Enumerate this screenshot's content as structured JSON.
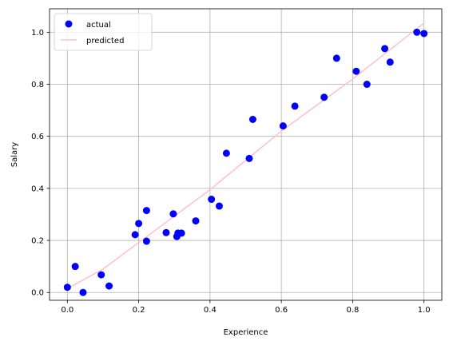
{
  "chart_data": {
    "type": "scatter",
    "title": "",
    "xlabel": "Experience",
    "ylabel": "Salary",
    "xlim": [
      -0.05,
      1.05
    ],
    "ylim": [
      -0.03,
      1.09
    ],
    "xticks": [
      "0.0",
      "0.2",
      "0.4",
      "0.6",
      "0.8",
      "1.0"
    ],
    "yticks": [
      "0.0",
      "0.2",
      "0.4",
      "0.6",
      "0.8",
      "1.0"
    ],
    "grid": true,
    "legend": {
      "placement": "top-left",
      "entries": [
        "actual",
        "predicted"
      ]
    },
    "series": [
      {
        "name": "actual",
        "kind": "scatter",
        "color": "#0000ff",
        "points": [
          [
            0.0,
            0.02
          ],
          [
            0.022,
            0.1
          ],
          [
            0.044,
            0.0
          ],
          [
            0.095,
            0.068
          ],
          [
            0.117,
            0.025
          ],
          [
            0.19,
            0.222
          ],
          [
            0.2,
            0.265
          ],
          [
            0.222,
            0.315
          ],
          [
            0.222,
            0.197
          ],
          [
            0.277,
            0.23
          ],
          [
            0.297,
            0.302
          ],
          [
            0.307,
            0.215
          ],
          [
            0.31,
            0.228
          ],
          [
            0.32,
            0.228
          ],
          [
            0.36,
            0.275
          ],
          [
            0.404,
            0.358
          ],
          [
            0.426,
            0.332
          ],
          [
            0.446,
            0.535
          ],
          [
            0.51,
            0.515
          ],
          [
            0.52,
            0.665
          ],
          [
            0.605,
            0.64
          ],
          [
            0.638,
            0.716
          ],
          [
            0.72,
            0.75
          ],
          [
            0.755,
            0.9
          ],
          [
            0.81,
            0.85
          ],
          [
            0.84,
            0.8
          ],
          [
            0.89,
            0.937
          ],
          [
            0.905,
            0.885
          ],
          [
            0.98,
            1.0
          ],
          [
            1.0,
            0.995
          ]
        ]
      },
      {
        "name": "predicted",
        "kind": "line",
        "color": "#ffc0cb",
        "points": [
          [
            0.0,
            0.015
          ],
          [
            0.1,
            0.09
          ],
          [
            0.4,
            0.395
          ],
          [
            0.6,
            0.62
          ],
          [
            0.8,
            0.82
          ],
          [
            1.0,
            1.035
          ]
        ]
      }
    ]
  }
}
